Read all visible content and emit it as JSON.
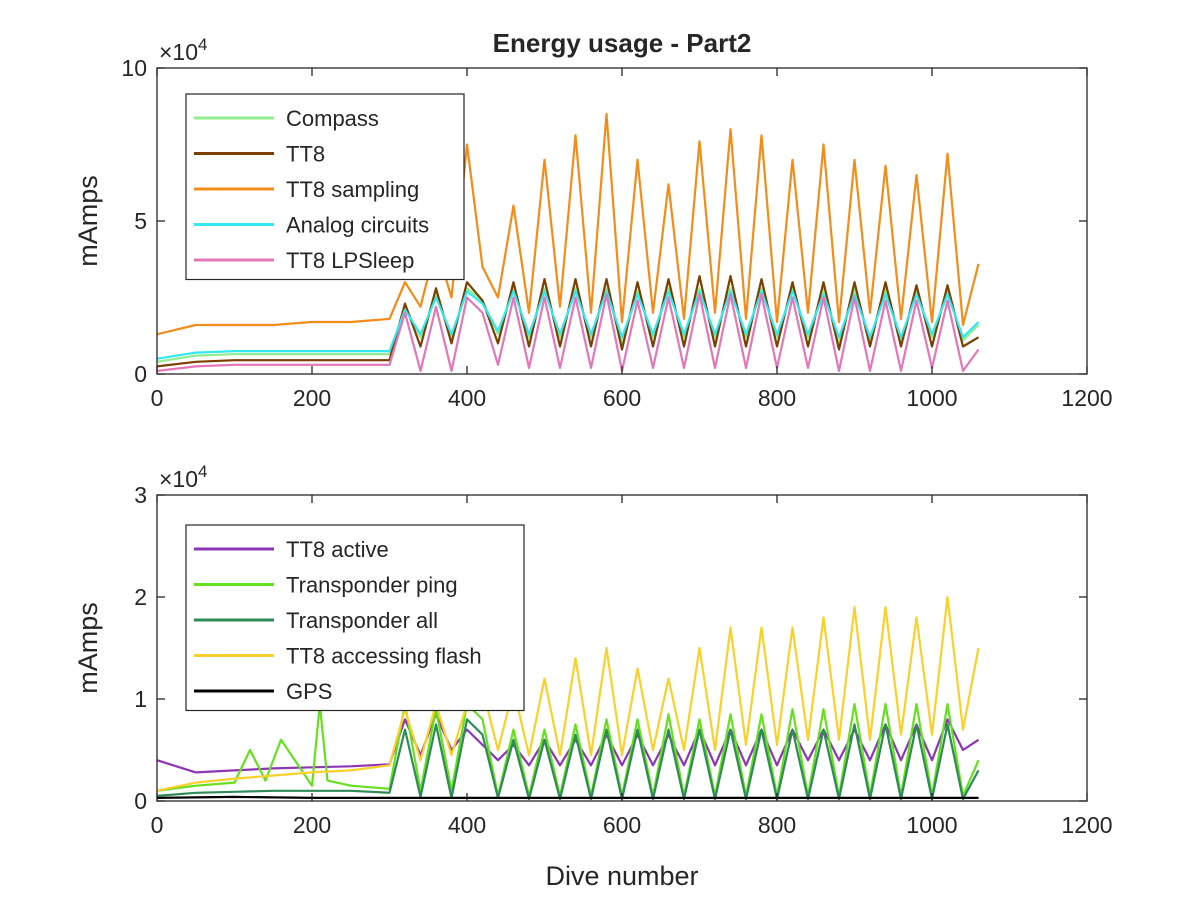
{
  "figure_title": "Energy usage - Part2",
  "chart_data": [
    {
      "type": "line",
      "title": "Energy usage - Part2",
      "xlabel": "",
      "ylabel": "mAmps",
      "xlim": [
        0,
        1200
      ],
      "ylim": [
        0,
        100000
      ],
      "x_ticks": [
        "0",
        "200",
        "400",
        "600",
        "800",
        "1000",
        "1200"
      ],
      "y_ticks": [
        "0",
        "5",
        "10"
      ],
      "y_exponent_base": "×10",
      "y_exponent_power": "4",
      "grid": false,
      "legend_position": "top-left",
      "legend": [
        "Compass",
        "TT8",
        "TT8 sampling",
        "Analog circuits",
        "TT8 LPSleep"
      ],
      "series": [
        {
          "name": "Compass",
          "color": "#90EE90",
          "x": [
            0,
            50,
            100,
            150,
            200,
            250,
            300,
            320,
            340,
            360,
            380,
            400,
            420,
            440,
            460,
            480,
            500,
            520,
            540,
            560,
            580,
            600,
            620,
            640,
            660,
            680,
            700,
            720,
            740,
            760,
            780,
            800,
            820,
            840,
            860,
            880,
            900,
            920,
            940,
            960,
            980,
            1000,
            1020,
            1040,
            1060
          ],
          "y": [
            4000,
            6000,
            6500,
            6500,
            6500,
            6500,
            6500,
            22000,
            12000,
            26000,
            12000,
            28000,
            24000,
            13000,
            28000,
            12000,
            28000,
            12000,
            28000,
            12000,
            28000,
            10000,
            27000,
            12000,
            28000,
            12000,
            28000,
            12000,
            28000,
            12000,
            28000,
            12000,
            28000,
            12000,
            28000,
            10000,
            28000,
            11000,
            28000,
            11000,
            27000,
            12000,
            27000,
            11000,
            16000
          ]
        },
        {
          "name": "TT8",
          "color": "#7B3F00",
          "x": [
            0,
            50,
            100,
            150,
            200,
            250,
            300,
            320,
            340,
            360,
            380,
            400,
            420,
            440,
            460,
            480,
            500,
            520,
            540,
            560,
            580,
            600,
            620,
            640,
            660,
            680,
            700,
            720,
            740,
            760,
            780,
            800,
            820,
            840,
            860,
            880,
            900,
            920,
            940,
            960,
            980,
            1000,
            1020,
            1040,
            1060
          ],
          "y": [
            2500,
            4000,
            4500,
            4500,
            4500,
            4500,
            4500,
            23000,
            9000,
            28000,
            10000,
            30000,
            24000,
            10000,
            30000,
            9000,
            31000,
            9000,
            31000,
            9000,
            31000,
            8000,
            30000,
            9000,
            31000,
            9000,
            32000,
            9000,
            32000,
            9000,
            31000,
            9000,
            30000,
            9000,
            30000,
            8000,
            30000,
            9000,
            30000,
            9000,
            29000,
            9000,
            29000,
            9000,
            12000
          ]
        },
        {
          "name": "TT8 sampling",
          "color": "#F28C1A",
          "x": [
            0,
            50,
            100,
            150,
            200,
            250,
            300,
            320,
            340,
            360,
            380,
            400,
            420,
            440,
            460,
            480,
            500,
            520,
            540,
            560,
            580,
            600,
            620,
            640,
            660,
            680,
            700,
            720,
            740,
            760,
            780,
            800,
            820,
            840,
            860,
            880,
            900,
            920,
            940,
            960,
            980,
            1000,
            1020,
            1040,
            1060
          ],
          "y": [
            13000,
            16000,
            16000,
            16000,
            17000,
            17000,
            18000,
            30000,
            22000,
            42000,
            25000,
            75000,
            35000,
            25000,
            55000,
            20000,
            70000,
            22000,
            78000,
            20000,
            85000,
            17000,
            70000,
            20000,
            62000,
            18000,
            76000,
            20000,
            80000,
            18000,
            78000,
            17000,
            70000,
            20000,
            75000,
            17000,
            70000,
            20000,
            68000,
            18000,
            65000,
            17000,
            72000,
            16000,
            36000
          ]
        },
        {
          "name": "Analog circuits",
          "color": "#33E8F0",
          "x": [
            0,
            50,
            100,
            150,
            200,
            250,
            300,
            320,
            340,
            360,
            380,
            400,
            420,
            440,
            460,
            480,
            500,
            520,
            540,
            560,
            580,
            600,
            620,
            640,
            660,
            680,
            700,
            720,
            740,
            760,
            780,
            800,
            820,
            840,
            860,
            880,
            900,
            920,
            940,
            960,
            980,
            1000,
            1020,
            1040,
            1060
          ],
          "y": [
            5000,
            7000,
            7500,
            7500,
            7500,
            7500,
            7500,
            21000,
            13000,
            25000,
            13000,
            27000,
            23000,
            14000,
            27000,
            13000,
            27000,
            13000,
            27000,
            13000,
            27000,
            12000,
            26000,
            13000,
            27000,
            13000,
            27000,
            13000,
            27000,
            13000,
            27000,
            13000,
            27000,
            13000,
            26000,
            12000,
            26000,
            12000,
            26000,
            12000,
            26000,
            13000,
            26000,
            12000,
            17000
          ]
        },
        {
          "name": "TT8 LPSleep",
          "color": "#E377B9",
          "x": [
            0,
            50,
            100,
            150,
            200,
            250,
            300,
            320,
            340,
            360,
            380,
            400,
            420,
            440,
            460,
            480,
            500,
            520,
            540,
            560,
            580,
            600,
            620,
            640,
            660,
            680,
            700,
            720,
            740,
            760,
            780,
            800,
            820,
            840,
            860,
            880,
            900,
            920,
            940,
            960,
            980,
            1000,
            1020,
            1040,
            1060
          ],
          "y": [
            1000,
            2500,
            3000,
            3000,
            3000,
            3000,
            3000,
            20000,
            1000,
            22000,
            1000,
            25000,
            20000,
            3000,
            25000,
            2000,
            25000,
            2000,
            25000,
            2000,
            26000,
            1000,
            24000,
            2000,
            25000,
            2000,
            26000,
            2000,
            26000,
            2000,
            26000,
            2000,
            25000,
            2000,
            25000,
            1000,
            25000,
            1000,
            24000,
            1000,
            24000,
            2000,
            24000,
            1000,
            8000
          ]
        }
      ]
    },
    {
      "type": "line",
      "title": "",
      "xlabel": "Dive number",
      "ylabel": "mAmps",
      "xlim": [
        0,
        1200
      ],
      "ylim": [
        0,
        30000
      ],
      "x_ticks": [
        "0",
        "200",
        "400",
        "600",
        "800",
        "1000",
        "1200"
      ],
      "y_ticks": [
        "0",
        "1",
        "2",
        "3"
      ],
      "y_exponent_base": "×10",
      "y_exponent_power": "4",
      "grid": false,
      "legend_position": "top-left",
      "legend": [
        "TT8 active",
        "Transponder ping",
        "Transponder all",
        "TT8 accessing flash",
        "GPS"
      ],
      "series": [
        {
          "name": "TT8 active",
          "color": "#8E35B5",
          "x": [
            0,
            50,
            100,
            150,
            200,
            250,
            300,
            320,
            340,
            360,
            380,
            400,
            420,
            440,
            460,
            480,
            500,
            520,
            540,
            560,
            580,
            600,
            620,
            640,
            660,
            680,
            700,
            720,
            740,
            760,
            780,
            800,
            820,
            840,
            860,
            880,
            900,
            920,
            940,
            960,
            980,
            1000,
            1020,
            1040,
            1060
          ],
          "y": [
            4000,
            2800,
            3000,
            3200,
            3300,
            3400,
            3600,
            8000,
            4500,
            8500,
            5000,
            7000,
            5500,
            4000,
            5500,
            3500,
            6000,
            3500,
            6000,
            3500,
            6500,
            3500,
            6500,
            3500,
            6500,
            3500,
            7000,
            3500,
            7000,
            3500,
            7000,
            3500,
            7000,
            4000,
            7000,
            4000,
            7000,
            4000,
            7500,
            4000,
            7500,
            4000,
            8000,
            5000,
            6000
          ]
        },
        {
          "name": "Transponder ping",
          "color": "#66E01E",
          "x": [
            0,
            50,
            100,
            120,
            140,
            160,
            200,
            210,
            220,
            250,
            300,
            320,
            340,
            360,
            380,
            400,
            420,
            440,
            460,
            480,
            500,
            520,
            540,
            560,
            580,
            600,
            620,
            640,
            660,
            680,
            700,
            720,
            740,
            760,
            780,
            800,
            820,
            840,
            860,
            880,
            900,
            920,
            940,
            960,
            980,
            1000,
            1020,
            1040,
            1060
          ],
          "y": [
            1000,
            1500,
            1800,
            5000,
            2000,
            6000,
            1500,
            9500,
            2000,
            1500,
            1200,
            9500,
            1000,
            9000,
            1000,
            9500,
            8000,
            500,
            7000,
            500,
            7000,
            500,
            7500,
            500,
            8000,
            500,
            8000,
            500,
            8500,
            500,
            8000,
            500,
            8500,
            500,
            8500,
            500,
            9000,
            500,
            9000,
            500,
            9500,
            500,
            9500,
            500,
            9500,
            500,
            9500,
            500,
            4000
          ]
        },
        {
          "name": "Transponder all",
          "color": "#2E8B57",
          "x": [
            0,
            50,
            100,
            150,
            200,
            250,
            300,
            320,
            340,
            360,
            380,
            400,
            420,
            440,
            460,
            480,
            500,
            520,
            540,
            560,
            580,
            600,
            620,
            640,
            660,
            680,
            700,
            720,
            740,
            760,
            780,
            800,
            820,
            840,
            860,
            880,
            900,
            920,
            940,
            960,
            980,
            1000,
            1020,
            1040,
            1060
          ],
          "y": [
            500,
            800,
            900,
            1000,
            1000,
            1000,
            800,
            7000,
            400,
            7500,
            300,
            8000,
            6500,
            300,
            6000,
            200,
            6000,
            200,
            6500,
            200,
            7000,
            200,
            7000,
            200,
            7000,
            200,
            7000,
            200,
            7000,
            200,
            7000,
            200,
            7000,
            200,
            7000,
            200,
            7500,
            200,
            7500,
            200,
            7500,
            200,
            7500,
            200,
            3000
          ]
        },
        {
          "name": "TT8 accessing flash",
          "color": "#FAD02C",
          "x": [
            0,
            50,
            100,
            150,
            200,
            250,
            300,
            320,
            340,
            360,
            380,
            400,
            420,
            440,
            460,
            480,
            500,
            520,
            540,
            560,
            580,
            600,
            620,
            640,
            660,
            680,
            700,
            720,
            740,
            760,
            780,
            800,
            820,
            840,
            860,
            880,
            900,
            920,
            940,
            960,
            980,
            1000,
            1020,
            1040,
            1060
          ],
          "y": [
            1000,
            1800,
            2200,
            2500,
            2800,
            3000,
            3500,
            9000,
            4000,
            9500,
            4500,
            9500,
            11000,
            5000,
            11000,
            4500,
            12000,
            4500,
            14000,
            4500,
            15000,
            4500,
            13000,
            5000,
            12000,
            5000,
            15000,
            5000,
            17000,
            5500,
            17000,
            5500,
            17000,
            6000,
            18000,
            6000,
            19000,
            6000,
            19000,
            6500,
            18000,
            6500,
            20000,
            7000,
            15000
          ]
        },
        {
          "name": "GPS",
          "color": "#000000",
          "x": [
            0,
            100,
            200,
            300,
            400,
            500,
            600,
            700,
            800,
            900,
            1000,
            1060
          ],
          "y": [
            300,
            400,
            300,
            300,
            300,
            300,
            300,
            300,
            300,
            300,
            300,
            300
          ]
        }
      ]
    }
  ]
}
